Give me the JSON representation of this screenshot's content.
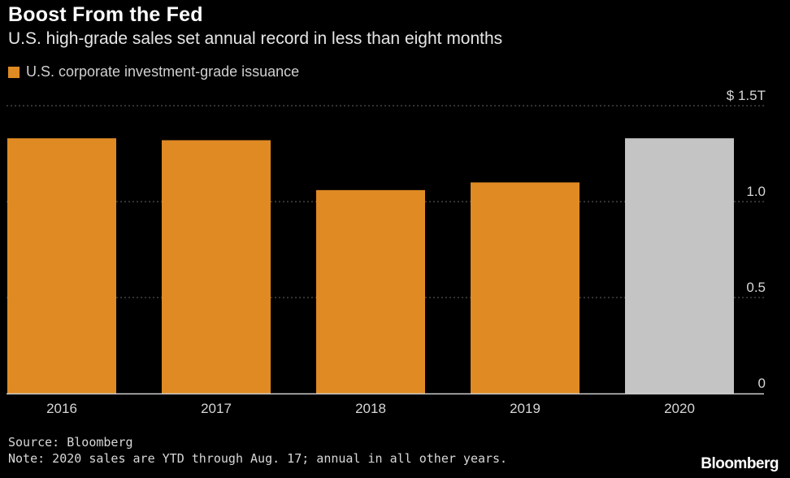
{
  "title": "Boost From the Fed",
  "subtitle": "U.S. high-grade sales set annual record in less than eight months",
  "legend": {
    "label": "U.S. corporate investment-grade issuance"
  },
  "source": "Source: Bloomberg",
  "note": "Note: 2020 sales are YTD through Aug. 17; annual in all other years.",
  "brand": "Bloomberg",
  "colors": {
    "background": "#000000",
    "bar": "#e08a24",
    "bar_highlight": "#c4c4c4",
    "grid": "#666666",
    "axis": "#cfcfcf",
    "text": "#ffffff",
    "tick_text": "#d6d6d6"
  },
  "chart_data": {
    "type": "bar",
    "categories": [
      "2016",
      "2017",
      "2018",
      "2019",
      "2020"
    ],
    "values": [
      1.33,
      1.32,
      1.06,
      1.1,
      1.33
    ],
    "highlight_categories": [
      "2020"
    ],
    "ylim": [
      0,
      1.5
    ],
    "yticks": [
      0,
      0.5,
      1.0,
      1.5
    ],
    "ytick_labels": [
      "0",
      "0.5",
      "1.0",
      "$ 1.5T"
    ],
    "xlabel": "",
    "ylabel": "",
    "grid": true,
    "legend_position": "top-left",
    "axis_side": "right"
  }
}
